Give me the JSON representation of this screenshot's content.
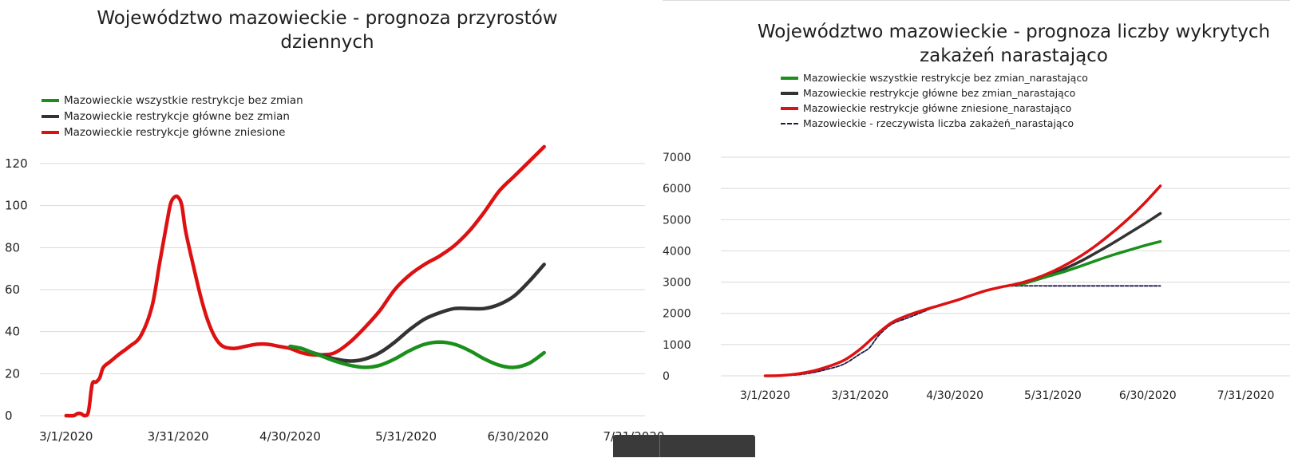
{
  "chart_data": [
    {
      "type": "line",
      "title": "Województwo mazowieckie - prognoza przyrostów dziennych",
      "title_lines": [
        "Województwo mazowieckie - prognoza przyrostów",
        "dziennych"
      ],
      "xlabel": "",
      "ylabel": "",
      "x_ticks": [
        "3/1/2020",
        "3/31/2020",
        "4/30/2020",
        "5/31/2020",
        "6/30/2020",
        "7/31/2020"
      ],
      "x_tick_days": [
        0,
        30,
        60,
        91,
        121,
        152
      ],
      "xlim_days": [
        -7,
        155
      ],
      "y_ticks": [
        0,
        20,
        40,
        60,
        80,
        100,
        120
      ],
      "ylim": [
        0,
        120
      ],
      "grid": true,
      "legend_placement": "top-left",
      "series": [
        {
          "name": "Mazowieckie wszystkie restrykcje bez zmian",
          "color": "#1a8f1a",
          "x_days": [
            60,
            63,
            66,
            69,
            72,
            76,
            80,
            84,
            88,
            92,
            96,
            100,
            104,
            108,
            112,
            116,
            120,
            124,
            128
          ],
          "values": [
            33,
            32,
            30,
            28,
            26,
            24,
            23,
            24,
            27,
            31,
            34,
            35,
            34,
            31,
            27,
            24,
            23,
            25,
            30
          ]
        },
        {
          "name": "Mazowieckie restrykcje główne bez zmian",
          "color": "#333333",
          "x_days": [
            60,
            63,
            66,
            69,
            72,
            76,
            80,
            84,
            88,
            92,
            96,
            100,
            104,
            108,
            112,
            116,
            120,
            124,
            128
          ],
          "values": [
            33,
            32,
            30,
            28.5,
            27,
            26,
            27,
            30,
            35,
            41,
            46,
            49,
            51,
            51,
            51,
            53,
            57,
            64,
            72
          ]
        },
        {
          "name": "Mazowieckie restrykcje główne zniesione",
          "color": "#dd1111",
          "x_days": [
            0,
            2,
            3,
            4,
            5,
            6,
            7,
            8,
            9,
            10,
            12,
            14,
            17,
            20,
            23,
            25,
            27,
            28,
            29,
            30,
            31,
            32,
            34,
            36,
            38,
            40,
            42,
            45,
            48,
            51,
            54,
            57,
            60,
            63,
            66,
            69,
            72,
            76,
            80,
            84,
            88,
            92,
            96,
            100,
            104,
            108,
            112,
            116,
            120,
            124,
            128
          ],
          "values": [
            0,
            0,
            1,
            1,
            0,
            2,
            15,
            16,
            18,
            23,
            26,
            29,
            33,
            38,
            52,
            72,
            92,
            101,
            104,
            104,
            100,
            88,
            72,
            57,
            45,
            37,
            33,
            32,
            33,
            34,
            34,
            33,
            32,
            30,
            29,
            29,
            30,
            35,
            42,
            50,
            60,
            67,
            72,
            76,
            81,
            88,
            97,
            107,
            114,
            121,
            128
          ]
        }
      ]
    },
    {
      "type": "line",
      "title": "Województwo mazowieckie - prognoza liczby wykrytych zakażeń narastająco",
      "title_lines": [
        "Województwo mazowieckie - prognoza liczby wykrytych",
        "zakażeń narastająco"
      ],
      "xlabel": "",
      "ylabel": "",
      "x_ticks": [
        "3/1/2020",
        "3/31/2020",
        "4/30/2020",
        "5/31/2020",
        "6/30/2020",
        "7/31/2020"
      ],
      "x_tick_days": [
        0,
        30,
        60,
        91,
        121,
        152
      ],
      "xlim_days": [
        -14,
        166
      ],
      "y_ticks": [
        0,
        1000,
        2000,
        3000,
        4000,
        5000,
        6000,
        7000
      ],
      "ylim": [
        0,
        7000
      ],
      "grid": true,
      "legend_placement": "top-left",
      "series": [
        {
          "name": "Mazowieckie wszystkie restrykcje bez zmian_narastająco",
          "color": "#1a8f1a",
          "x_days": [
            80,
            85,
            90,
            95,
            100,
            105,
            110,
            115,
            120,
            125
          ],
          "values": [
            2900,
            3050,
            3200,
            3350,
            3520,
            3700,
            3870,
            4020,
            4170,
            4300
          ]
        },
        {
          "name": "Mazowieckie restrykcje główne bez zmian_narastająco",
          "color": "#333333",
          "x_days": [
            80,
            85,
            90,
            95,
            100,
            105,
            110,
            115,
            120,
            125
          ],
          "values": [
            2900,
            3050,
            3230,
            3440,
            3680,
            3960,
            4250,
            4560,
            4870,
            5200
          ]
        },
        {
          "name": "Mazowieckie restrykcje główne zniesione_narastająco",
          "color": "#dd1111",
          "x_days": [
            0,
            5,
            10,
            15,
            20,
            25,
            30,
            35,
            40,
            45,
            50,
            55,
            60,
            65,
            70,
            75,
            80,
            85,
            90,
            95,
            100,
            105,
            110,
            115,
            120,
            125
          ],
          "values": [
            0,
            10,
            60,
            150,
            300,
            500,
            850,
            1300,
            1700,
            1930,
            2100,
            2250,
            2400,
            2570,
            2730,
            2850,
            2950,
            3100,
            3300,
            3550,
            3850,
            4200,
            4600,
            5040,
            5530,
            6080
          ]
        },
        {
          "name": "Mazowieckie - rzeczywista liczba zakażeń_narastająco",
          "color": "#1a1a4a",
          "dashed": true,
          "x_days": [
            0,
            5,
            10,
            15,
            20,
            25,
            30,
            33,
            36,
            40,
            45,
            50,
            55,
            60,
            65,
            70,
            75,
            80,
            90,
            100,
            110,
            120,
            125
          ],
          "values": [
            0,
            5,
            30,
            100,
            220,
            380,
            700,
            900,
            1300,
            1650,
            1850,
            2050,
            2250,
            2380,
            2550,
            2720,
            2860,
            2880,
            2880,
            2880,
            2880,
            2880,
            2880
          ]
        }
      ]
    }
  ]
}
